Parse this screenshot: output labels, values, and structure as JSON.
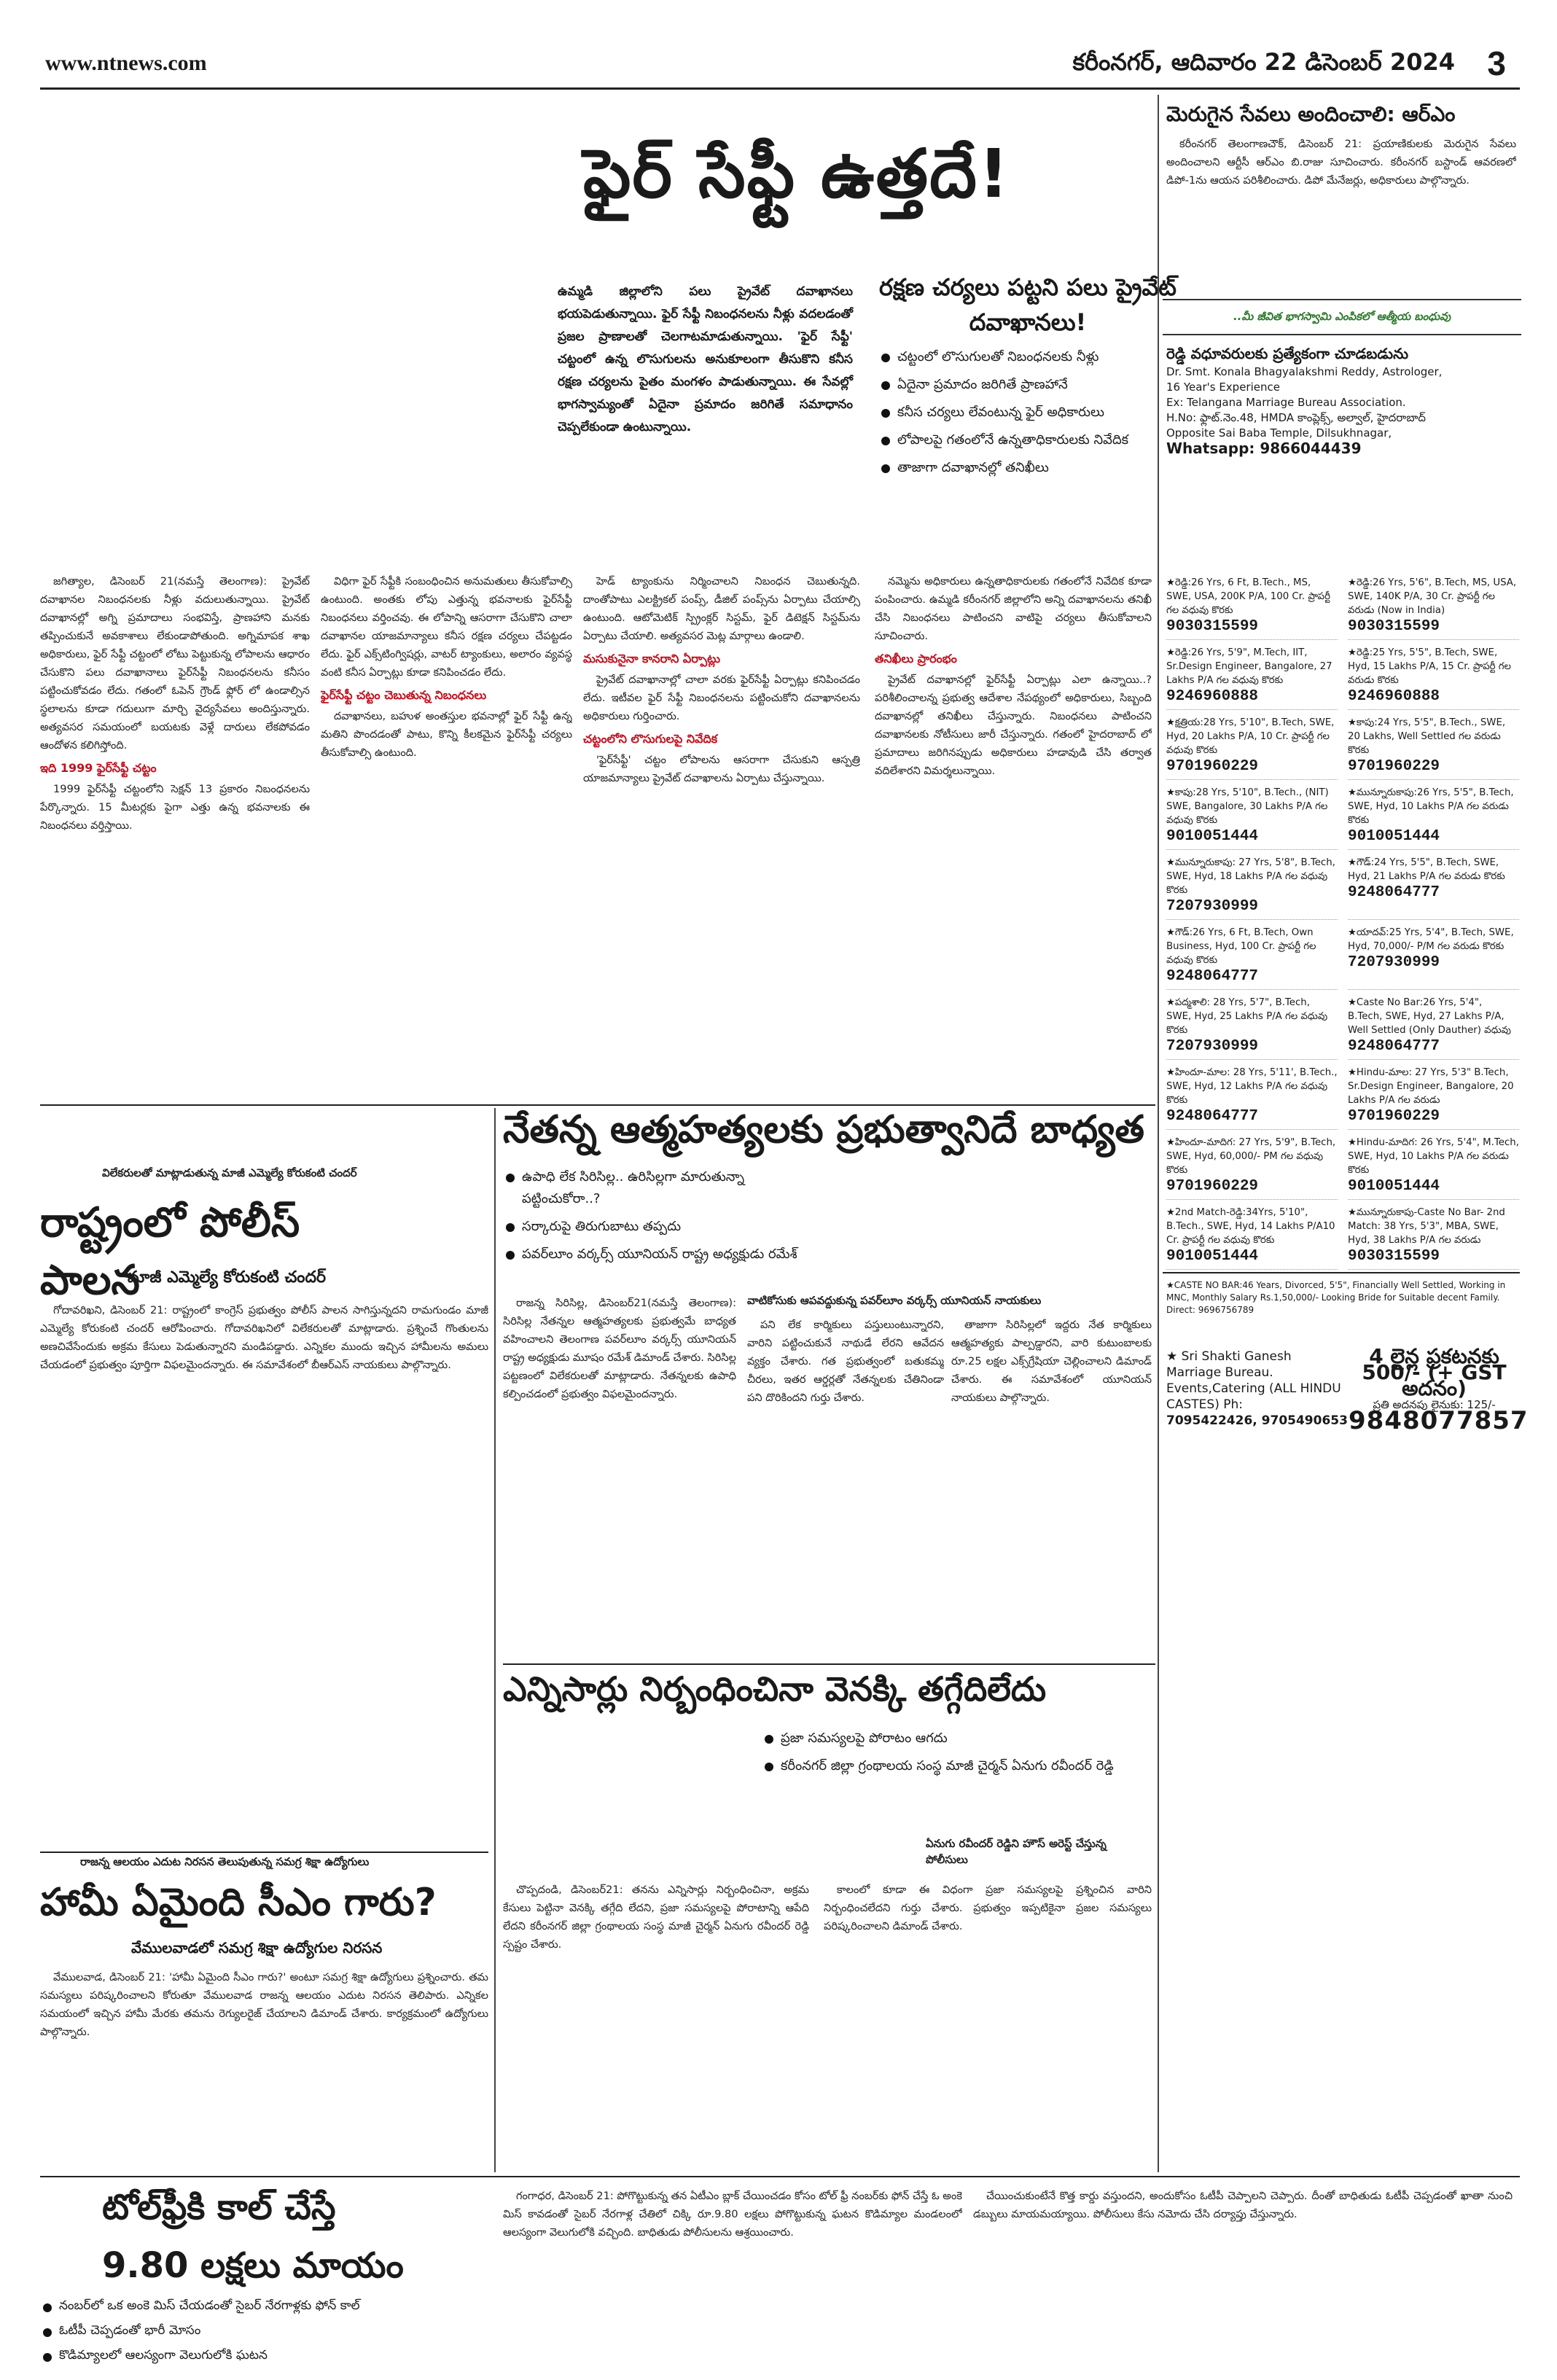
{
  "masthead": {
    "url": "www.ntnews.com",
    "date": "కరీంనగర్, ఆదివారం 22 డిసెంబర్ 2024",
    "page": "3"
  },
  "fire": {
    "headline": "ఫైర్ సేఫ్టీ ఉత్తదే!",
    "deck": "రక్షణ చర్యలు పట్టని పలు ప్రైవేట్ దవాఖానలు!",
    "blurb": "ఉమ్మడి జిల్లాలోని పలు ప్రైవేట్ దవాఖానలు భయపెడుతున్నాయి. ఫైర్ సేఫ్టీ నిబంధనలను నీళ్లు వదలడంతో ప్రజల ప్రాణాలతో చెలగాటమాడుతున్నాయి. 'ఫైర్ సేఫ్టీ' చట్టంలో ఉన్న లొసుగులను అనుకూలంగా తీసుకొని కనీస రక్షణ చర్యలను పైతం మంగళం పాడుతున్నాయి. ఈ సేవల్లో భాగస్వామ్యంతో ఏదైనా ప్రమాదం జరిగితే సమాధానం చెప్పలేకుండా ఉంటున్నాయి.",
    "bullets": [
      "చట్టంలో లొసుగులతో నిబంధనలకు నీళ్లు",
      "ఏదైనా ప్రమాదం జరిగితే ప్రాణహానే",
      "కనీస చర్యలు లేవంటున్న ఫైర్ అధికారులు",
      "లోపాలపై గతంలోనే ఉన్నతాధికారులకు నివేదిక",
      "తాజాగా దవాఖానల్లో తనిఖీలు"
    ],
    "col1": "జగిత్యాల, డిసెంబర్ 21(నమస్తే తెలంగాణ): ప్రైవేట్ దవాఖానల నిబంధనలకు నీళ్లు వదులుతున్నాయి. ప్రైవేట్ దవాఖానల్లో అగ్ని ప్రమాదాలు సంభవిస్తే, ప్రాణహాని మనకు తప్పించుకునే అవకాశాలు లేకుండాపోతుంది. అగ్నిమాపక శాఖ అధికారులు, ఫైర్ సేఫ్టీ చట్టంలో లోటు పెట్టుకున్న లోపాలను ఆధారం చేసుకొని పలు దవాఖానాలు ఫైర్‌సేఫ్టీ నిబంధనలను కనీసం పట్టించుకోవడం లేదు. గతంలో ఓపెన్ గ్రౌండ్ ఫ్లోర్ లో ఉండాల్సిన స్థలాలను కూడా గదులుగా మార్చి వైద్యసేవలు అందిస్తున్నారు. అత్యవసర సమయంలో బయటకు వెళ్లే దారులు లేకపోవడం ఆందోళన కలిగిస్తోంది.",
    "col1_sub": "ఇది 1999 ఫైర్‌సేఫ్టీ చట్టం",
    "col1b": "1999 ఫైర్‌సేఫ్టీ చట్టంలోని సెక్షన్ 13 ప్రకారం నిబంధనలను పేర్కొన్నారు. 15 మీటర్లకు పైగా ఎత్తు ఉన్న భవనాలకు ఈ నిబంధనలు వర్తిస్తాయి.",
    "col2": "విధిగా ఫైర్ సేఫ్టీకి సంబంధించిన అనుమతులు తీసుకోవాల్సి ఉంటుంది. అంతకు లోపు ఎత్తున్న భవనాలకు ఫైర్‌సేఫ్టీ నిబంధనలు వర్తించవు. ఈ లోపాన్ని ఆసరాగా చేసుకొని చాలా దవాఖానల యాజమాన్యాలు కనీస రక్షణ చర్యలు చేపట్టడం లేదు. ఫైర్ ఎక్స్‌టింగ్విషర్లు, వాటర్ ట్యాంకులు, అలారం వ్యవస్థ వంటి కనీస ఏర్పాట్లు కూడా కనిపించడం లేదు.",
    "col2_sub": "ఫైర్‌సేఫ్టీ చట్టం చెబుతున్న నిబంధనలు",
    "col2b": "దవాఖానలు, బహుళ అంతస్తుల భవనాల్లో ఫైర్ సేఫ్టీ ఉన్న మతిని పొందడంతో పాటు, కొన్ని కీలకమైన ఫైర్‌సేఫ్టీ చర్యలు తీసుకోవాల్సి ఉంటుంది.",
    "col3": "హెడ్ ట్యాంకును నిర్మించాలని నిబంధన చెబుతున్నది. దాంతోపాటు ఎలక్ట్రికల్ పంప్స్, డీజిల్ పంప్స్‌ను ఏర్పాటు చేయాల్సి ఉంటుంది. ఆటోమెటిక్ స్ప్రింక్లర్ సిస్టమ్, ఫైర్ డిటెక్షన్ సిస్టమ్‌ను ఏర్పాటు చేయాలి. అత్యవసర మెట్ల మార్గాలు ఉండాలి.",
    "col3_sub": "మసుకునైనా కానరాని ఏర్పాట్లు",
    "col3b": "ప్రైవేట్ దవాఖానాల్లో చాలా వరకు ఫైర్‌సేఫ్టీ ఏర్పాట్లు కనిపించడం లేదు. ఇటీవల ఫైర్ సేఫ్టీ నిబంధనలను పట్టించుకోని దవాఖానలను అధికారులు గుర్తించారు.",
    "col3_sub2": "చట్టంలోని లొసుగులపై నివేదిక",
    "col3c": "'ఫైర్‌సేఫ్టీ' చట్టం లోపాలను ఆసరాగా చేసుకుని ఆస్పత్రి యాజమాన్యాలు ప్రైవేట్ దవాఖాలను ఏర్పాటు చేస్తున్నాయి.",
    "col4": "నమ్మెను అధికారులు ఉన్నతాధికారులకు గతంలోనే నివేదిక కూడా పంపించారు. ఉమ్మడి కరీంనగర్ జిల్లాలోని అన్ని దవాఖానలను తనిఖీ చేసి నిబంధనలు పాటించని వాటిపై చర్యలు తీసుకోవాలని సూచించారు.",
    "col4_sub": "తనిఖీలు ప్రారంభం",
    "col4b": "ప్రైవేట్ దవాఖానల్లో ఫైర్‌సేఫ్టీ ఏర్పాట్లు ఎలా ఉన్నాయి..? పరిశీలించాలన్న ప్రభుత్వ ఆదేశాల నేపథ్యంలో అధికారులు, సిబ్బంది దవాఖానల్లో తనిఖీలు చేస్తున్నారు. నిబంధనలు పాటించని దవాఖానలకు నోటీసులు జారీ చేస్తున్నారు. గతంలో హైదరాబాద్ లో ప్రమాదాలు జరిగినప్పుడు అధికారులు హడావుడి చేసి తర్వాత వదిలేశారని విమర్శలున్నాయి."
  },
  "nethanna": {
    "headline": "నేతన్న ఆత్మహత్యలకు ప్రభుత్వానిదే బాధ్యత",
    "bullets": [
      "ఉపాధి లేక సిరిసిల్ల.. ఉరిసిల్లగా మారుతున్నా పట్టించుకోరా..?",
      "సర్కారుపై తిరుగుబాటు తప్పదు",
      "పవర్‌లూం వర్కర్స్ యూనియన్ రాష్ట్ర అధ్యక్షుడు రమేశ్"
    ],
    "colA": "రాజన్న సిరిసిల్ల, డిసెంబర్21(నమస్తే తెలంగాణ): సిరిసిల్ల నేతన్నల ఆత్మహత్యలకు ప్రభుత్వమే బాధ్యత వహించాలని తెలంగాణ పవర్‌లూం వర్కర్స్ యూనియన్ రాష్ట్ర అధ్యక్షుడు మూషం రమేశ్ డిమాండ్ చేశారు. సిరిసిల్ల పట్టణంలో విలేకరులతో మాట్లాడారు. నేతన్నలకు ఉపాధి కల్పించడంలో ప్రభుత్వం విఫలమైందన్నారు.",
    "colB_tag": "వాటికోసుకు ఆపవద్దుకున్న పవర్‌లూం వర్కర్స్ యూనియన్ నాయకులు",
    "colB": "పని లేక కార్మికులు పస్తులుంటున్నారని, వారిని పట్టించుకునే నాథుడే లేరని ఆవేదన వ్యక్తం చేశారు. గత ప్రభుత్వంలో బతుకమ్మ చీరలు, ఇతర ఆర్డర్లతో నేతన్నలకు చేతినిండా పని దొరికిందని గుర్తు చేశారు.",
    "colC": "తాజాగా సిరిసిల్లలో ఇద్దరు నేత కార్మికులు ఆత్మహత్యకు పాల్పడ్డారని, వారి కుటుంబాలకు రూ.25 లక్షల ఎక్స్‌గ్రేషియా చెల్లించాలని డిమాండ్ చేశారు. ఈ సమావేశంలో యూనియన్ నాయకులు పాల్గొన్నారు."
  },
  "police": {
    "tag": "విలేకరులతో మాట్లాడుతున్న మాజీ ఎమ్మెల్యే కోరుకంటి చందర్",
    "headline": "రాష్ట్రంలో పోలీస్ పాలన",
    "byline": "మాజీ ఎమ్మెల్యే కోరుకంటి చందర్",
    "body": "గోదావరిఖని, డిసెంబర్ 21: రాష్ట్రంలో కాంగ్రెస్ ప్రభుత్వం పోలీస్ పాలన సాగిస్తున్నదని రామగుండం మాజీ ఎమ్మెల్యే కోరుకంటి చందర్ ఆరోపించారు. గోదావరిఖనిలో విలేకరులతో మాట్లాడారు. ప్రశ్నించే గొంతులను అణచివేసేందుకు అక్రమ కేసులు పెడుతున్నారని మండిపడ్డారు. ఎన్నికల ముందు ఇచ్చిన హామీలను అమలు చేయడంలో ప్రభుత్వం పూర్తిగా విఫలమైందన్నారు. ఈ సమావేశంలో బీఆర్ఎస్ నాయకులు పాల్గొన్నారు."
  },
  "enni": {
    "headline": "ఎన్నిసార్లు నిర్బంధించినా వెనక్కి తగ్గేదిలేదు",
    "bullets": [
      "ప్రజా సమస్యలపై పోరాటం ఆగదు",
      "కరీంనగర్ జిల్లా గ్రంథాలయ సంస్థ మాజీ చైర్మన్ ఏనుగు రవీందర్ రెడ్డి"
    ],
    "caption": "ఏనుగు రవీందర్ రెడ్డిని హౌస్ అరెస్ట్ చేస్తున్న పోలీసులు",
    "colA": "చొప్పదండి, డిసెంబర్21: తనను ఎన్నిసార్లు నిర్బంధించినా, అక్రమ కేసులు పెట్టినా వెనక్కి తగ్గేది లేదని, ప్రజా సమస్యలపై పోరాటాన్ని ఆపేది లేదని కరీంనగర్ జిల్లా గ్రంథాలయ సంస్థ మాజీ చైర్మన్ ఏనుగు రవీందర్ రెడ్డి స్పష్టం చేశారు.",
    "colB": "కాలంలో కూడా ఈ విధంగా ప్రజా సమస్యలపై ప్రశ్నించిన వారిని నిర్బంధించలేదని గుర్తు చేశారు. ప్రభుత్వం ఇప్పటికైనా ప్రజల సమస్యలు పరిష్కరించాలని డిమాండ్ చేశారు."
  },
  "hami": {
    "tag": "రాజన్న ఆలయం ఎదుట నిరసన తెలుపుతున్న సమగ్ర శిక్షా ఉద్యోగులు",
    "headline": "హామీ ఏమైంది సీఎం గారు?",
    "byline": "వేములవాడలో సమగ్ర శిక్షా ఉద్యోగుల నిరసన",
    "body": "వేములవాడ, డిసెంబర్ 21: 'హామీ ఏమైంది సీఎం గారు?' అంటూ సమగ్ర శిక్షా ఉద్యోగులు ప్రశ్నించారు. తమ సమస్యలు పరిష్కరించాలని కోరుతూ వేములవాడ రాజన్న ఆలయం ఎదుట నిరసన తెలిపారు. ఎన్నికల సమయంలో ఇచ్చిన హామీ మేరకు తమను రెగ్యులరైజ్ చేయాలని డిమాండ్ చేశారు. కార్యక్రమంలో ఉద్యోగులు పాల్గొన్నారు."
  },
  "toll": {
    "headline1": "టోల్‌ఫ్రీకి కాల్ చేస్తే",
    "headline2": "9.80 లక్షలు మాయం",
    "bullets": [
      "నంబర్‌లో ఒక అంకె మిస్ చేయడంతో సైబర్ నేరగాళ్లకు ఫోన్ కాల్",
      "ఓటీపీ చెప్పడంతో భారీ మోసం",
      "కొడిమ్యాలలో ఆలస్యంగా వెలుగులోకి ఘటన"
    ],
    "body": "గంగాధర, డిసెంబర్ 21: పోగొట్టుకున్న తన ఏటీఎం బ్లాక్ చేయించడం కోసం టోల్ ఫ్రీ నంబర్‌కు ఫోన్ చేస్తే ఓ అంకె మిస్ కావడంతో సైబర్ నేరగాళ్ల చేతిలో చిక్కి రూ.9.80 లక్షలు పోగొట్టుకున్న ఘటన కొడిమ్యాల మండలంలో ఆలస్యంగా వెలుగులోకి వచ్చింది. బాధితుడు పోలీసులను ఆశ్రయించారు.",
    "body2": "చేయించుకుంటేనే కొత్త కార్డు వస్తుందని, అందుకోసం ఓటీపీ చెప్పాలని చెప్పారు. దీంతో బాధితుడు ఓటీపీ చెప్పడంతో ఖాతా నుంచి డబ్బులు మాయమయ్యాయి. పోలీసులు కేసు నమోదు చేసి దర్యాప్తు చేస్తున్నారు."
  },
  "ads": {
    "head": "మెరుగైన సేవలు అందించాలి: ఆర్ఎం",
    "text": "కరీంనగర్ తెలంగాణచౌక్, డిసెంబర్ 21: ప్రయాణికులకు మెరుగైన సేవలు అందించాలని ఆర్టీసీ ఆర్ఎం బి.రాజు సూచించారు. కరీంనగర్ బస్టాండ్ ఆవరణలో డిపో-1ను ఆయన పరిశీలించారు. డిపో మేనేజర్లు, అధికారులు పాల్గొన్నారు.",
    "band": "..మీ జీవిత భాగస్వామి ఎంపికలో ఆత్మీయ బంధువు",
    "bureau_title": "రెడ్డి వధూవరులకు ప్రత్యేకంగా చూడబడును",
    "bureau_lines": [
      "Dr. Smt. Konala Bhagyalakshmi Reddy, Astrologer,",
      "16 Year's Experience",
      "Ex: Telangana Marriage Bureau Association.",
      "H.No: ఫ్లాట్.నెం.48, HMDA కాంప్లెక్స్, అల్వాల్, హైదరాబాద్",
      "Opposite Sai Baba Temple, Dilsukhnagar,"
    ],
    "bureau_phone": "Whatsapp: 9866044439",
    "matri": [
      {
        "t": "★రెడ్డి:26 Yrs, 6 Ft, B.Tech., MS, SWE, USA, 200K P/A, 100 Cr. ప్రాపర్టీ గల వధువు కొరకు",
        "p": "9030315599"
      },
      {
        "t": "★రెడ్డి:26 Yrs, 5'6\", B.Tech, MS, USA, SWE, 140K P/A, 30 Cr. ప్రాపర్టీ గల వరుడు (Now in India)",
        "p": "9030315599"
      },
      {
        "t": "★రెడ్డి:26 Yrs, 5'9\", M.Tech, IIT, Sr.Design Engineer, Bangalore, 27 Lakhs P/A గల వధువు కొరకు",
        "p": "9246960888"
      },
      {
        "t": "★రెడ్డి:25 Yrs, 5'5\", B.Tech, SWE, Hyd, 15 Lakhs P/A, 15 Cr. ప్రాపర్టీ గల వరుడు కొరకు",
        "p": "9246960888"
      },
      {
        "t": "★క్షత్రియ:28 Yrs, 5'10\", B.Tech, SWE, Hyd, 20 Lakhs P/A, 10 Cr. ప్రాపర్టీ గల వధువు కొరకు",
        "p": "9701960229"
      },
      {
        "t": "★కాపు:24 Yrs, 5'5\", B.Tech., SWE, 20 Lakhs, Well Settled గల వరుడు కొరకు",
        "p": "9701960229"
      },
      {
        "t": "★కాపు:28 Yrs, 5'10\", B.Tech., (NIT) SWE, Bangalore, 30 Lakhs P/A గల వధువు కొరకు",
        "p": "9010051444"
      },
      {
        "t": "★మున్నూరుకాపు:26 Yrs, 5'5\", B.Tech, SWE, Hyd, 10 Lakhs P/A గల వరుడు కొరకు",
        "p": "9010051444"
      },
      {
        "t": "★మున్నూరుకాపు: 27 Yrs, 5'8\", B.Tech, SWE, Hyd, 18 Lakhs P/A గల వధువు కొరకు",
        "p": "7207930999"
      },
      {
        "t": "★గౌడ్:24 Yrs, 5'5\", B.Tech, SWE, Hyd, 21 Lakhs P/A గల వరుడు కొరకు",
        "p": "9248064777"
      },
      {
        "t": "★గౌడ్:26 Yrs, 6 Ft, B.Tech, Own Business, Hyd, 100 Cr. ప్రాపర్టీ గల వధువు కొరకు",
        "p": "9248064777"
      },
      {
        "t": "★యాదవ్:25 Yrs, 5'4\", B.Tech, SWE, Hyd, 70,000/- P/M గల వరుడు కొరకు",
        "p": "7207930999"
      },
      {
        "t": "★పద్మశాలి: 28 Yrs, 5'7\", B.Tech, SWE, Hyd, 25 Lakhs P/A గల వధువు కొరకు",
        "p": "7207930999"
      },
      {
        "t": "★Caste No Bar:26 Yrs, 5'4\", B.Tech, SWE, Hyd, 27 Lakhs P/A, Well Settled (Only Dauther) వధువు",
        "p": "9248064777"
      },
      {
        "t": "★హిందూ-మాల: 28 Yrs, 5'11', B.Tech., SWE, Hyd, 12 Lakhs P/A గల వధువు కొరకు",
        "p": "9248064777"
      },
      {
        "t": "★Hindu-మాల: 27 Yrs, 5'3\" B.Tech, Sr.Design Engineer, Bangalore, 20 Lakhs P/A గల వరుడు",
        "p": "9701960229"
      },
      {
        "t": "★హిందూ-మాదిగ: 27 Yrs, 5'9\", B.Tech, SWE, Hyd, 60,000/- PM గల వధువు కొరకు",
        "p": "9701960229"
      },
      {
        "t": "★Hindu-మాదిగ: 26 Yrs, 5'4\", M.Tech, SWE, Hyd, 10 Lakhs P/A గల వరుడు కొరకు",
        "p": "9010051444"
      },
      {
        "t": "★2nd Match-రెడ్డి:34Yrs, 5'10\", B.Tech., SWE, Hyd, 14 Lakhs P/A10 Cr. ప్రాపర్టీ గల వధువు కొరకు",
        "p": "9010051444"
      },
      {
        "t": "★మున్నూరుకాపు-Caste No Bar- 2nd Match: 38 Yrs, 5'3\", MBA, SWE, Hyd, 38 Lakhs P/A గల వరుడు",
        "p": "9030315599"
      }
    ],
    "foot": "★CASTE NO BAR:46 Years, Divorced, 5'5\", Financially Well Settled, Working in MNC, Monthly Salary Rs.1,50,000/- Looking Bride for Suitable decent Family. Direct: 9696756789",
    "ganesh_name": "★ Sri Shakti Ganesh Marriage Bureau. Events,Catering (ALL HINDU CASTES) Ph:",
    "ganesh_phone": "7095422426, 9705490653",
    "price_line1": "4 లైన్ల ప్రకటనకు",
    "price_amt": "500/- (+ GST అదనం)",
    "price_line2": "ప్రతి అదనపు లైనుకు: 125/-",
    "price_phone": "9848077857"
  }
}
